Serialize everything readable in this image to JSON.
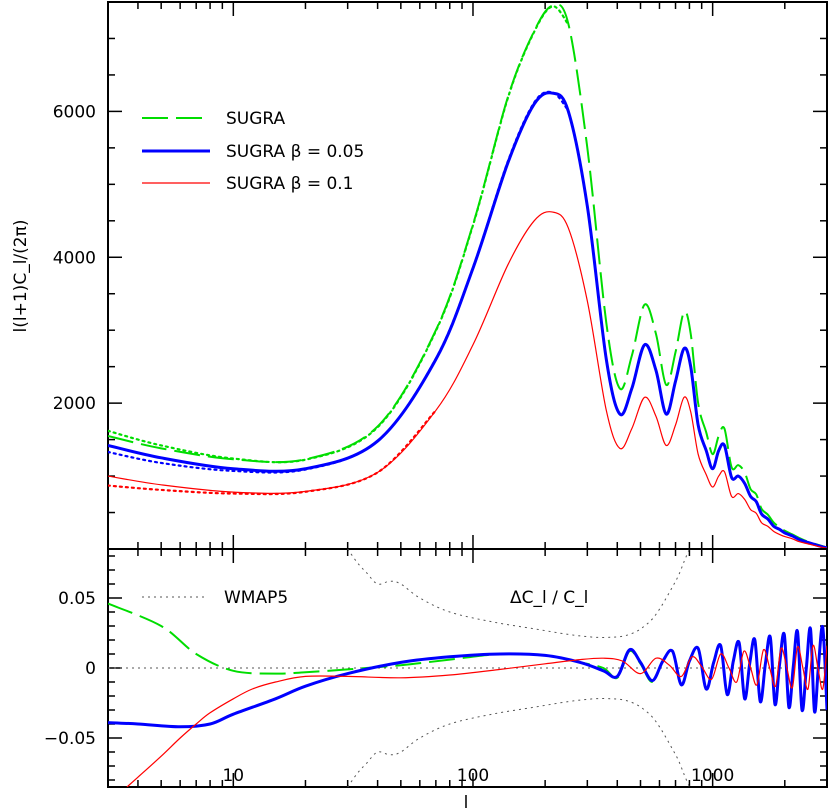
{
  "chart_data": [
    {
      "type": "line",
      "xscale": "log",
      "xlim": [
        3,
        3000
      ],
      "ylim": [
        0,
        7500
      ],
      "ylabel": "l(l+1)C_l/(2π)",
      "ytick_values": [
        2000,
        4000,
        6000
      ],
      "ytick_labels": [
        "2000",
        "4000",
        "6000"
      ],
      "legend_position": "upper-left",
      "series": [
        {
          "name": "SUGRA",
          "color": "#00dd00",
          "style": "long-dash",
          "x": [
            3,
            5,
            10,
            20,
            40,
            70,
            100,
            140,
            180,
            215,
            250,
            300,
            360,
            410,
            460,
            520,
            580,
            640,
            700,
            760,
            810,
            870,
            940,
            1000,
            1060,
            1120,
            1200,
            1280,
            1360,
            1440,
            1520,
            1600,
            1700,
            1800,
            1900,
            2000,
            2150,
            2300,
            2500,
            2800,
            3000
          ],
          "y": [
            1550,
            1380,
            1230,
            1230,
            1680,
            3000,
            4450,
            6200,
            7100,
            7450,
            7200,
            5500,
            3100,
            2200,
            2650,
            3350,
            2950,
            2250,
            2700,
            3250,
            2950,
            2000,
            1600,
            1300,
            1550,
            1650,
            1120,
            1150,
            1050,
            820,
            750,
            550,
            470,
            360,
            300,
            250,
            200,
            150,
            100,
            50,
            20
          ]
        },
        {
          "name": "SUGRA β = 0.05",
          "color": "#0000ff",
          "style": "solid-thick",
          "x": [
            3,
            5,
            10,
            20,
            40,
            70,
            100,
            140,
            180,
            215,
            250,
            300,
            360,
            410,
            460,
            520,
            580,
            640,
            700,
            760,
            810,
            870,
            940,
            1000,
            1060,
            1120,
            1200,
            1280,
            1360,
            1440,
            1520,
            1600,
            1700,
            1800,
            1900,
            2000,
            2150,
            2300,
            2500,
            2800,
            3000
          ],
          "y": [
            1420,
            1250,
            1100,
            1100,
            1480,
            2600,
            3850,
            5300,
            6100,
            6250,
            6000,
            4700,
            2600,
            1850,
            2200,
            2800,
            2450,
            1850,
            2300,
            2750,
            2500,
            1700,
            1350,
            1100,
            1350,
            1420,
            980,
            1000,
            900,
            720,
            650,
            480,
            410,
            310,
            270,
            220,
            180,
            130,
            90,
            40,
            15
          ]
        },
        {
          "name": "SUGRA β = 0.1",
          "color": "#ff0000",
          "style": "solid-thin",
          "x": [
            3,
            5,
            10,
            20,
            40,
            70,
            100,
            140,
            180,
            215,
            250,
            300,
            360,
            410,
            460,
            520,
            580,
            640,
            700,
            760,
            810,
            870,
            940,
            1000,
            1060,
            1120,
            1200,
            1280,
            1360,
            1440,
            1520,
            1600,
            1700,
            1800,
            1900,
            2000,
            2150,
            2300,
            2500,
            2800,
            3000
          ],
          "y": [
            1000,
            880,
            780,
            790,
            1050,
            1900,
            2800,
            3900,
            4500,
            4620,
            4400,
            3400,
            1900,
            1380,
            1650,
            2080,
            1820,
            1420,
            1700,
            2080,
            1880,
            1300,
            1020,
            850,
            1000,
            1060,
            720,
            760,
            680,
            540,
            490,
            360,
            310,
            240,
            200,
            170,
            140,
            100,
            70,
            30,
            10
          ]
        }
      ],
      "companion_dotted_series": [
        {
          "color": "#00dd00",
          "x": [
            3,
            5,
            10,
            20,
            40,
            70,
            100,
            140,
            180,
            215,
            250
          ],
          "y": [
            1620,
            1420,
            1240,
            1225,
            1670,
            2990,
            4440,
            6190,
            7090,
            7440,
            7190
          ]
        },
        {
          "color": "#0000ff",
          "x": [
            3,
            5,
            10,
            20,
            40,
            70,
            100,
            140,
            180,
            215,
            250
          ],
          "y": [
            1330,
            1180,
            1070,
            1090,
            1480,
            2610,
            3860,
            5320,
            6120,
            6260,
            6010
          ]
        },
        {
          "color": "#ff0000",
          "x": [
            3,
            5,
            10,
            20,
            40,
            70
          ],
          "y": [
            870,
            810,
            760,
            785,
            1050,
            1900
          ]
        }
      ]
    },
    {
      "type": "line",
      "xscale": "log",
      "xlim": [
        3,
        3000
      ],
      "ylim": [
        -0.085,
        0.085
      ],
      "xlabel": "l",
      "xtick_values": [
        10,
        100,
        1000
      ],
      "xtick_labels": [
        "10",
        "100",
        "1000"
      ],
      "ytick_values": [
        -0.05,
        0,
        0.05
      ],
      "ytick_labels": [
        "−0.05",
        "0",
        "0.05"
      ],
      "annotation": "ΔC_l / C_l",
      "wmap_label": "WMAP5",
      "series": [
        {
          "name": "SUGRA",
          "color": "#00dd00",
          "style": "long-dash",
          "x": [
            3,
            5,
            7,
            10,
            15,
            20,
            30,
            50,
            80,
            130,
            200,
            280,
            350,
            400,
            450,
            500,
            560,
            620,
            680,
            740,
            800,
            870,
            940,
            1010,
            1080,
            1150,
            1220,
            1290,
            1360,
            1430,
            1500,
            1580,
            1660,
            1740,
            1820,
            1900,
            1990,
            2080,
            2170,
            2260,
            2360,
            2460,
            2560,
            2660,
            2760,
            2880,
            3000
          ],
          "y": [
            0.046,
            0.03,
            0.01,
            -0.002,
            -0.004,
            -0.003,
            -0.001,
            0.002,
            0.006,
            0.01,
            0.009,
            0.004,
            0.0,
            -0.007,
            0.012,
            0.003,
            -0.01,
            0.005,
            0.012,
            -0.012,
            0.005,
            0.014,
            -0.015,
            0.004,
            0.016,
            -0.019,
            0.005,
            0.018,
            -0.022,
            0.004,
            0.02,
            -0.024,
            0.003,
            0.022,
            -0.026,
            0.002,
            0.024,
            -0.028,
            0.001,
            0.026,
            -0.03,
            0.0,
            0.028,
            -0.031,
            0.0,
            0.029,
            -0.03
          ]
        },
        {
          "name": "SUGRA β = 0.05",
          "color": "#0000ff",
          "style": "solid-thick",
          "x": [
            3,
            4,
            6,
            8,
            10,
            15,
            20,
            30,
            50,
            80,
            130,
            200,
            280,
            350,
            400,
            450,
            500,
            560,
            620,
            680,
            740,
            800,
            870,
            940,
            1010,
            1080,
            1150,
            1220,
            1290,
            1360,
            1430,
            1500,
            1580,
            1660,
            1740,
            1820,
            1900,
            1990,
            2080,
            2170,
            2260,
            2360,
            2460,
            2560,
            2660,
            2760,
            2880,
            3000
          ],
          "y": [
            -0.039,
            -0.04,
            -0.042,
            -0.04,
            -0.033,
            -0.022,
            -0.013,
            -0.004,
            0.004,
            0.008,
            0.01,
            0.009,
            0.004,
            -0.002,
            -0.006,
            0.013,
            0.004,
            -0.009,
            0.005,
            0.012,
            -0.012,
            0.005,
            0.014,
            -0.015,
            0.004,
            0.016,
            -0.019,
            0.005,
            0.018,
            -0.022,
            0.004,
            0.02,
            -0.024,
            0.003,
            0.022,
            -0.026,
            0.002,
            0.024,
            -0.028,
            0.001,
            0.026,
            -0.03,
            0.0,
            0.028,
            -0.031,
            0.0,
            0.029,
            -0.03
          ]
        },
        {
          "name": "SUGRA β = 0.1",
          "color": "#ff0000",
          "style": "solid-thin",
          "x": [
            3.6,
            4,
            5,
            6,
            7,
            8,
            10,
            12,
            15,
            20,
            30,
            50,
            80,
            130,
            200,
            280,
            350,
            420,
            500,
            580,
            660,
            740,
            820,
            900,
            990,
            1080,
            1170,
            1260,
            1350,
            1440,
            1530,
            1630,
            1730,
            1830,
            1930,
            2040,
            2150,
            2260,
            2380,
            2500,
            2620,
            2750,
            2880,
            3000
          ],
          "y": [
            -0.085,
            -0.078,
            -0.063,
            -0.05,
            -0.04,
            -0.032,
            -0.022,
            -0.015,
            -0.01,
            -0.006,
            -0.006,
            -0.007,
            -0.005,
            -0.001,
            0.003,
            0.006,
            0.007,
            0.005,
            -0.004,
            0.007,
            0.002,
            -0.006,
            0.008,
            0.001,
            -0.008,
            0.01,
            0.0,
            -0.01,
            0.012,
            0.0,
            -0.012,
            0.013,
            0.0,
            -0.013,
            0.014,
            0.0,
            -0.014,
            0.015,
            0.0,
            -0.015,
            0.016,
            0.0,
            -0.015,
            0.016
          ]
        }
      ],
      "wmap_band_upper": {
        "x": [
          30,
          33,
          36,
          40,
          45,
          50,
          60,
          80,
          120,
          180,
          250,
          320,
          380,
          430,
          480,
          520,
          560,
          600,
          640,
          680,
          720,
          760,
          800
        ],
        "y": [
          0.085,
          0.075,
          0.068,
          0.06,
          0.062,
          0.06,
          0.05,
          0.04,
          0.033,
          0.028,
          0.024,
          0.022,
          0.022,
          0.023,
          0.026,
          0.03,
          0.035,
          0.042,
          0.05,
          0.058,
          0.066,
          0.076,
          0.085
        ]
      },
      "wmap_band_lower": {
        "x": [
          30,
          33,
          36,
          40,
          45,
          50,
          60,
          80,
          120,
          180,
          250,
          320,
          380,
          430,
          480,
          520,
          560,
          600,
          640,
          680,
          720,
          760,
          800
        ],
        "y": [
          -0.085,
          -0.075,
          -0.068,
          -0.06,
          -0.062,
          -0.06,
          -0.05,
          -0.04,
          -0.033,
          -0.028,
          -0.024,
          -0.022,
          -0.022,
          -0.023,
          -0.026,
          -0.03,
          -0.035,
          -0.042,
          -0.05,
          -0.058,
          -0.066,
          -0.076,
          -0.085
        ]
      }
    }
  ]
}
